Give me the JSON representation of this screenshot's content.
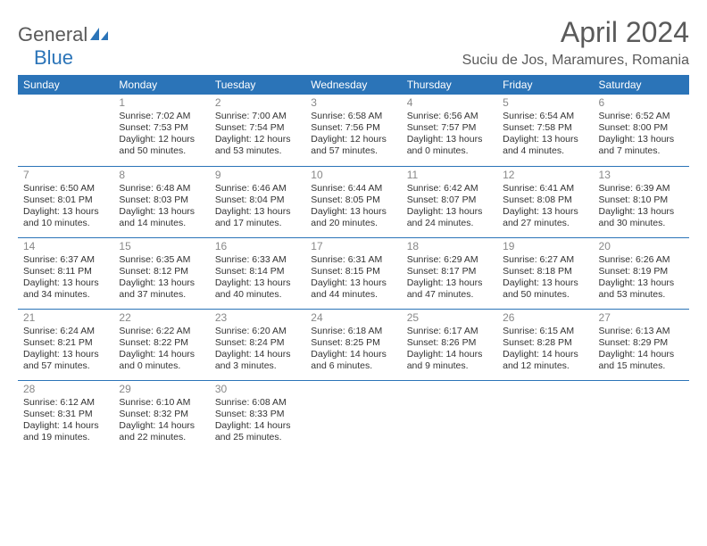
{
  "logo": {
    "part1": "General",
    "part2": "Blue",
    "icon_color": "#2b74b8"
  },
  "header": {
    "month_title": "April 2024",
    "location": "Suciu de Jos, Maramures, Romania"
  },
  "colors": {
    "header_bg": "#2b74b8",
    "header_text": "#ffffff",
    "rule": "#2b74b8",
    "daynum": "#888888",
    "body_text": "#333333",
    "page_bg": "#ffffff"
  },
  "typography": {
    "month_title_fontsize": 32,
    "location_fontsize": 16,
    "dayheader_fontsize": 12,
    "daynum_fontsize": 12,
    "cell_fontsize": 10.5,
    "font_family": "Arial"
  },
  "day_headers": [
    "Sunday",
    "Monday",
    "Tuesday",
    "Wednesday",
    "Thursday",
    "Friday",
    "Saturday"
  ],
  "weeks": [
    [
      {
        "n": "",
        "sunrise": "",
        "sunset": "",
        "daylight": ""
      },
      {
        "n": "1",
        "sunrise": "Sunrise: 7:02 AM",
        "sunset": "Sunset: 7:53 PM",
        "daylight": "Daylight: 12 hours and 50 minutes."
      },
      {
        "n": "2",
        "sunrise": "Sunrise: 7:00 AM",
        "sunset": "Sunset: 7:54 PM",
        "daylight": "Daylight: 12 hours and 53 minutes."
      },
      {
        "n": "3",
        "sunrise": "Sunrise: 6:58 AM",
        "sunset": "Sunset: 7:56 PM",
        "daylight": "Daylight: 12 hours and 57 minutes."
      },
      {
        "n": "4",
        "sunrise": "Sunrise: 6:56 AM",
        "sunset": "Sunset: 7:57 PM",
        "daylight": "Daylight: 13 hours and 0 minutes."
      },
      {
        "n": "5",
        "sunrise": "Sunrise: 6:54 AM",
        "sunset": "Sunset: 7:58 PM",
        "daylight": "Daylight: 13 hours and 4 minutes."
      },
      {
        "n": "6",
        "sunrise": "Sunrise: 6:52 AM",
        "sunset": "Sunset: 8:00 PM",
        "daylight": "Daylight: 13 hours and 7 minutes."
      }
    ],
    [
      {
        "n": "7",
        "sunrise": "Sunrise: 6:50 AM",
        "sunset": "Sunset: 8:01 PM",
        "daylight": "Daylight: 13 hours and 10 minutes."
      },
      {
        "n": "8",
        "sunrise": "Sunrise: 6:48 AM",
        "sunset": "Sunset: 8:03 PM",
        "daylight": "Daylight: 13 hours and 14 minutes."
      },
      {
        "n": "9",
        "sunrise": "Sunrise: 6:46 AM",
        "sunset": "Sunset: 8:04 PM",
        "daylight": "Daylight: 13 hours and 17 minutes."
      },
      {
        "n": "10",
        "sunrise": "Sunrise: 6:44 AM",
        "sunset": "Sunset: 8:05 PM",
        "daylight": "Daylight: 13 hours and 20 minutes."
      },
      {
        "n": "11",
        "sunrise": "Sunrise: 6:42 AM",
        "sunset": "Sunset: 8:07 PM",
        "daylight": "Daylight: 13 hours and 24 minutes."
      },
      {
        "n": "12",
        "sunrise": "Sunrise: 6:41 AM",
        "sunset": "Sunset: 8:08 PM",
        "daylight": "Daylight: 13 hours and 27 minutes."
      },
      {
        "n": "13",
        "sunrise": "Sunrise: 6:39 AM",
        "sunset": "Sunset: 8:10 PM",
        "daylight": "Daylight: 13 hours and 30 minutes."
      }
    ],
    [
      {
        "n": "14",
        "sunrise": "Sunrise: 6:37 AM",
        "sunset": "Sunset: 8:11 PM",
        "daylight": "Daylight: 13 hours and 34 minutes."
      },
      {
        "n": "15",
        "sunrise": "Sunrise: 6:35 AM",
        "sunset": "Sunset: 8:12 PM",
        "daylight": "Daylight: 13 hours and 37 minutes."
      },
      {
        "n": "16",
        "sunrise": "Sunrise: 6:33 AM",
        "sunset": "Sunset: 8:14 PM",
        "daylight": "Daylight: 13 hours and 40 minutes."
      },
      {
        "n": "17",
        "sunrise": "Sunrise: 6:31 AM",
        "sunset": "Sunset: 8:15 PM",
        "daylight": "Daylight: 13 hours and 44 minutes."
      },
      {
        "n": "18",
        "sunrise": "Sunrise: 6:29 AM",
        "sunset": "Sunset: 8:17 PM",
        "daylight": "Daylight: 13 hours and 47 minutes."
      },
      {
        "n": "19",
        "sunrise": "Sunrise: 6:27 AM",
        "sunset": "Sunset: 8:18 PM",
        "daylight": "Daylight: 13 hours and 50 minutes."
      },
      {
        "n": "20",
        "sunrise": "Sunrise: 6:26 AM",
        "sunset": "Sunset: 8:19 PM",
        "daylight": "Daylight: 13 hours and 53 minutes."
      }
    ],
    [
      {
        "n": "21",
        "sunrise": "Sunrise: 6:24 AM",
        "sunset": "Sunset: 8:21 PM",
        "daylight": "Daylight: 13 hours and 57 minutes."
      },
      {
        "n": "22",
        "sunrise": "Sunrise: 6:22 AM",
        "sunset": "Sunset: 8:22 PM",
        "daylight": "Daylight: 14 hours and 0 minutes."
      },
      {
        "n": "23",
        "sunrise": "Sunrise: 6:20 AM",
        "sunset": "Sunset: 8:24 PM",
        "daylight": "Daylight: 14 hours and 3 minutes."
      },
      {
        "n": "24",
        "sunrise": "Sunrise: 6:18 AM",
        "sunset": "Sunset: 8:25 PM",
        "daylight": "Daylight: 14 hours and 6 minutes."
      },
      {
        "n": "25",
        "sunrise": "Sunrise: 6:17 AM",
        "sunset": "Sunset: 8:26 PM",
        "daylight": "Daylight: 14 hours and 9 minutes."
      },
      {
        "n": "26",
        "sunrise": "Sunrise: 6:15 AM",
        "sunset": "Sunset: 8:28 PM",
        "daylight": "Daylight: 14 hours and 12 minutes."
      },
      {
        "n": "27",
        "sunrise": "Sunrise: 6:13 AM",
        "sunset": "Sunset: 8:29 PM",
        "daylight": "Daylight: 14 hours and 15 minutes."
      }
    ],
    [
      {
        "n": "28",
        "sunrise": "Sunrise: 6:12 AM",
        "sunset": "Sunset: 8:31 PM",
        "daylight": "Daylight: 14 hours and 19 minutes."
      },
      {
        "n": "29",
        "sunrise": "Sunrise: 6:10 AM",
        "sunset": "Sunset: 8:32 PM",
        "daylight": "Daylight: 14 hours and 22 minutes."
      },
      {
        "n": "30",
        "sunrise": "Sunrise: 6:08 AM",
        "sunset": "Sunset: 8:33 PM",
        "daylight": "Daylight: 14 hours and 25 minutes."
      },
      {
        "n": "",
        "sunrise": "",
        "sunset": "",
        "daylight": ""
      },
      {
        "n": "",
        "sunrise": "",
        "sunset": "",
        "daylight": ""
      },
      {
        "n": "",
        "sunrise": "",
        "sunset": "",
        "daylight": ""
      },
      {
        "n": "",
        "sunrise": "",
        "sunset": "",
        "daylight": ""
      }
    ]
  ]
}
